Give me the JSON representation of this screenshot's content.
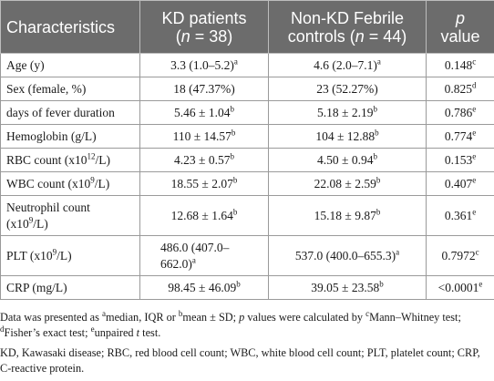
{
  "header": {
    "col1": "Characteristics",
    "col2_line1": "KD patients",
    "col2_n_open": "(",
    "col2_n": "n",
    "col2_n_val": " = 38)",
    "col3_line1": "Non-KD Febrile",
    "col3_pre": "controls (",
    "col3_n": "n",
    "col3_n_val": " = 44)",
    "col4_p": "p",
    "col4_line2": "value"
  },
  "rows": [
    {
      "label": "Age (y)",
      "kd": "3.3 (1.0–5.2)",
      "kd_sup": "a",
      "non": "4.6 (2.0–7.1)",
      "non_sup": "a",
      "p": "0.148",
      "p_sup": "c"
    },
    {
      "label": "Sex (female, %)",
      "kd": "18 (47.37%)",
      "kd_sup": "",
      "non": "23 (52.27%)",
      "non_sup": "",
      "p": "0.825",
      "p_sup": "d"
    },
    {
      "label": "days of fever duration",
      "kd": "5.46 ± 1.04",
      "kd_sup": "b",
      "non": "5.18 ± 2.19",
      "non_sup": "b",
      "p": "0.786",
      "p_sup": "e"
    },
    {
      "label": "Hemoglobin (g/L)",
      "kd": "110 ± 14.57",
      "kd_sup": "b",
      "non": "104 ± 12.88",
      "non_sup": "b",
      "p": "0.774",
      "p_sup": "e"
    },
    {
      "label_pre": "RBC count (x10",
      "label_sup": "12",
      "label_post": "/L)",
      "kd": "4.23 ± 0.57",
      "kd_sup": "b",
      "non": "4.50 ± 0.94",
      "non_sup": "b",
      "p": "0.153",
      "p_sup": "e"
    },
    {
      "label_pre": "WBC count (x10",
      "label_sup": "9",
      "label_post": "/L)",
      "kd": "18.55 ± 2.07",
      "kd_sup": "b",
      "non": "22.08 ± 2.59",
      "non_sup": "b",
      "p": "0.407",
      "p_sup": "e"
    },
    {
      "label_line1": "Neutrophil count",
      "label_pre": "(x10",
      "label_sup": "9",
      "label_post": "/L)",
      "kd": "12.68 ± 1.64",
      "kd_sup": "b",
      "non": "15.18 ± 9.87",
      "non_sup": "b",
      "p": "0.361",
      "p_sup": "e"
    },
    {
      "label_pre": "PLT (x10",
      "label_sup": "9",
      "label_post": "/L)",
      "kd_line1": "486.0 (407.0–",
      "kd_line2": "662.0)",
      "kd_sup": "a",
      "non": "537.0 (400.0–655.3)",
      "non_sup": "a",
      "p": "0.7972",
      "p_sup": "c"
    },
    {
      "label": "CRP (mg/L)",
      "kd": "98.45 ± 46.09",
      "kd_sup": "b",
      "non": "39.05 ± 23.58",
      "non_sup": "b",
      "p": "<0.0001",
      "p_sup": "e"
    }
  ],
  "notes": {
    "n1_a": "Data was presented as ",
    "n1_sup_a": "a",
    "n1_b": "median, IQR or ",
    "n1_sup_b": "b",
    "n1_c": "mean ± SD; ",
    "n1_p": "p",
    "n1_d": " values were calculated by ",
    "n1_sup_c": "c",
    "n1_e": "Mann–Whitney test; ",
    "n1_sup_d": "d",
    "n1_f": "Fisher’s exact test; ",
    "n1_sup_e": "e",
    "n1_g": "unpaired ",
    "n1_t": "t",
    "n1_h": " test.",
    "n2": "KD, Kawasaki disease; RBC, red blood cell count; WBC, white blood cell count; PLT, platelet count; CRP, C-reactive protein."
  }
}
